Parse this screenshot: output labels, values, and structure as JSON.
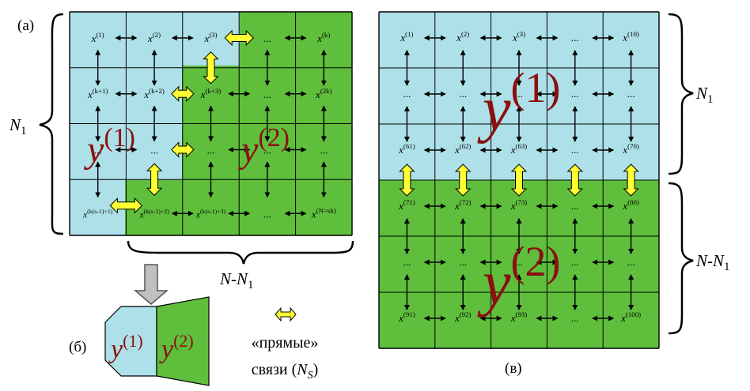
{
  "panel_a": {
    "label": "(а)",
    "rows": [
      [
        "x(1)",
        "x(2)",
        "x(3)",
        "...",
        "x(k)"
      ],
      [
        "x(k+1)",
        "x(k+2)",
        "x(k+3)",
        "...",
        "x(2k)"
      ],
      [
        "...",
        "...",
        "...",
        "...",
        "..."
      ],
      [
        "x(k(s-1)+1)",
        "x(k(s-1)+2)",
        "x(k(s-1)+3)",
        "...",
        "x(N=sk)"
      ]
    ],
    "y1_label": "y(1)",
    "y2_label": "y(2)",
    "n1_label": "N1",
    "n_minus_n1_label": "N-N1"
  },
  "panel_b": {
    "label": "(б)",
    "y1_label": "y(1)",
    "y2_label": "y(2)"
  },
  "legend": {
    "line1": "«прямые»",
    "line2": "связи (NS)"
  },
  "panel_v": {
    "label": "(в)",
    "rows": [
      [
        "x(1)",
        "x(2)",
        "x(3)",
        "...",
        "x(10)"
      ],
      [
        "...",
        "...",
        "...",
        "...",
        "..."
      ],
      [
        "x(61)",
        "x(62)",
        "x(63)",
        "...",
        "x(70)"
      ],
      [
        "x(71)",
        "x(72)",
        "x(73)",
        "...",
        "x(80)"
      ],
      [
        "...",
        "...",
        "...",
        "...",
        "..."
      ],
      [
        "x(91)",
        "x(92)",
        "x(93)",
        "...",
        "x(100)"
      ]
    ],
    "y1_label": "y(1)",
    "y2_label": "y(2)",
    "n1_label": "N1",
    "n_minus_n1_label": "N-N1"
  },
  "colors": {
    "cyan": "#ade0e8",
    "green": "#5fbe3c",
    "arrow_yellow": "#ffff33",
    "dark_red": "#8b1010",
    "gray_arrow": "#c0c0c0"
  }
}
